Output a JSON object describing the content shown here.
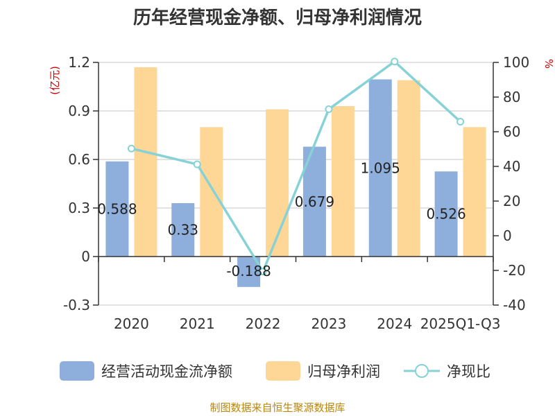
{
  "title": "历年经营现金净额、归母净利润情况",
  "source": "制图数据来自恒生聚源数据库",
  "colors": {
    "cash": "#8eaedb",
    "profit": "#fed797",
    "ratio": "#86d2d6"
  },
  "chart_data": {
    "type": "bar",
    "categories": [
      "2020",
      "2021",
      "2022",
      "2023",
      "2024",
      "2025Q1-Q3"
    ],
    "series": [
      {
        "name": "经营活动现金流净额",
        "axis": "left",
        "values": [
          0.588,
          0.33,
          -0.188,
          0.679,
          1.095,
          0.526
        ],
        "labels": [
          "0.588",
          "0.33",
          "-0.188",
          "0.679",
          "1.095",
          "0.526"
        ]
      },
      {
        "name": "归母净利润",
        "axis": "left",
        "values": [
          1.17,
          0.8,
          0.91,
          0.93,
          1.09,
          0.8
        ]
      },
      {
        "name": "净现比",
        "axis": "right",
        "type": "line",
        "values": [
          50.3,
          41.2,
          -20.7,
          73.0,
          100.5,
          65.8
        ]
      }
    ],
    "y_left": {
      "unit": "(亿元)",
      "min": -0.3,
      "max": 1.2,
      "ticks": [
        "-0.3",
        "0",
        "0.3",
        "0.6",
        "0.9",
        "1.2"
      ]
    },
    "y_right": {
      "unit": "%",
      "min": -40,
      "max": 100,
      "ticks": [
        "-40",
        "-20",
        "0",
        "20",
        "40",
        "60",
        "80",
        "100"
      ]
    },
    "grid": true,
    "legend": "bottom"
  }
}
